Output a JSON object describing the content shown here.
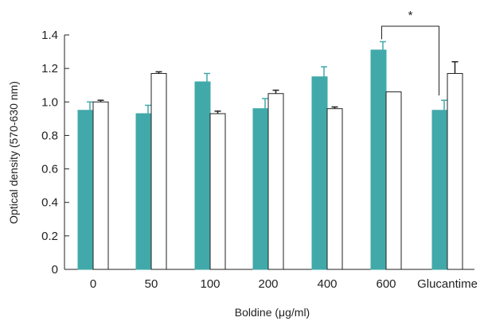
{
  "chart_data": {
    "type": "bar",
    "ylabel": "Optical density (570-630 nm)",
    "xlabel": "Boldine (μg/ml)",
    "ylim": [
      0,
      1.4
    ],
    "yticks": [
      "0",
      "0.2",
      "0.4",
      "0.6",
      "0.8",
      "1.0",
      "1.2",
      "1.4"
    ],
    "categories": [
      "0",
      "50",
      "100",
      "200",
      "400",
      "600",
      "Glucantime"
    ],
    "series": [
      {
        "color": "#41a9a9",
        "values": [
          0.95,
          0.93,
          1.12,
          0.96,
          1.15,
          1.31,
          0.95
        ],
        "errors": [
          0.05,
          0.05,
          0.05,
          0.06,
          0.06,
          0.05,
          0.06
        ]
      },
      {
        "color": "#ffffff",
        "values": [
          1.0,
          1.17,
          0.93,
          1.05,
          0.96,
          1.06,
          1.17
        ],
        "errors": [
          0.01,
          0.01,
          0.015,
          0.02,
          0.01,
          0.0,
          0.07
        ]
      }
    ],
    "grid": false,
    "annotations": [
      {
        "text": "*",
        "between": [
          "600",
          "Glucantime"
        ]
      }
    ]
  }
}
